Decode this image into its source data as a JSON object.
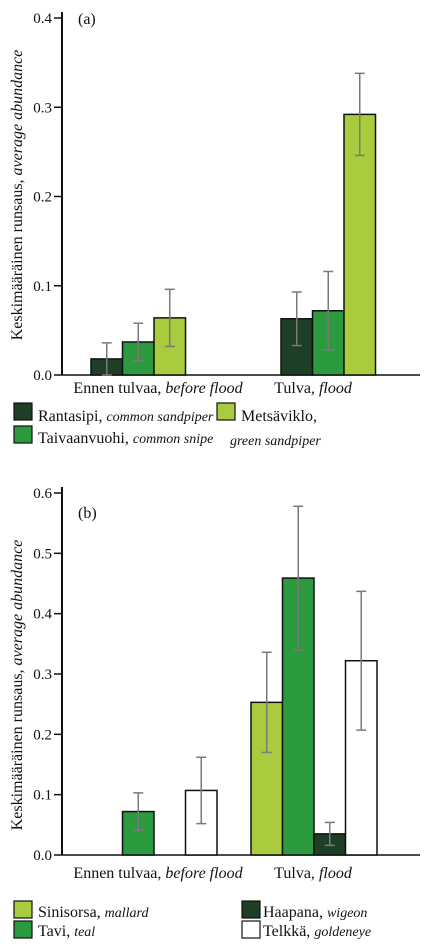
{
  "chart_data": [
    {
      "panel_label": "(a)",
      "type": "bar",
      "ylabel": {
        "fi": "Keskimääräinen runsaus,",
        "en": "average abundance"
      },
      "ylim": [
        0,
        0.4
      ],
      "yticks": [
        "0.0",
        "0.1",
        "0.2",
        "0.3",
        "0.4"
      ],
      "categories": [
        {
          "fi": "Ennen tulvaa,",
          "en": "before flood"
        },
        {
          "fi": "Tulva,",
          "en": "flood"
        }
      ],
      "series": [
        {
          "name_fi": "Rantasipi,",
          "name_en": "common sandpiper",
          "color": "#1e3f26",
          "values": [
            0.018,
            0.063
          ],
          "errors": [
            0.018,
            0.03
          ]
        },
        {
          "name_fi": "Taivaanvuohi,",
          "name_en": "common snipe",
          "color": "#2c9a3e",
          "values": [
            0.037,
            0.072
          ],
          "errors": [
            0.021,
            0.044
          ]
        },
        {
          "name_fi": "Metsäviklo,",
          "name_en": "green sandpiper",
          "color": "#a9cc3f",
          "values": [
            0.064,
            0.292
          ],
          "errors": [
            0.032,
            0.046
          ]
        }
      ],
      "legend_placement": "bottom"
    },
    {
      "panel_label": "(b)",
      "type": "bar",
      "ylabel": {
        "fi": "Keskimääräinen runsaus,",
        "en": "average abundance"
      },
      "ylim": [
        0,
        0.6
      ],
      "yticks": [
        "0.0",
        "0.1",
        "0.2",
        "0.3",
        "0.4",
        "0.5",
        "0.6"
      ],
      "categories": [
        {
          "fi": "Ennen tulvaa,",
          "en": "before flood"
        },
        {
          "fi": "Tulva,",
          "en": "flood"
        }
      ],
      "series": [
        {
          "name_fi": "Sinisorsa,",
          "name_en": "mallard",
          "color": "#a9cc3f",
          "values": [
            0,
            0.253
          ],
          "errors": [
            0,
            0.083
          ]
        },
        {
          "name_fi": "Tavi,",
          "name_en": "teal",
          "color": "#2c9a3e",
          "values": [
            0.072,
            0.459
          ],
          "errors": [
            0.031,
            0.119
          ]
        },
        {
          "name_fi": "Haapana,",
          "name_en": "wigeon",
          "color": "#1e3f26",
          "values": [
            0,
            0.035
          ],
          "errors": [
            0,
            0.019
          ]
        },
        {
          "name_fi": "Telkkä,",
          "name_en": "goldeneye",
          "color": "#ffffff",
          "values": [
            0.107,
            0.322
          ],
          "errors": [
            0.055,
            0.115
          ]
        }
      ],
      "legend_placement": "bottom"
    }
  ]
}
